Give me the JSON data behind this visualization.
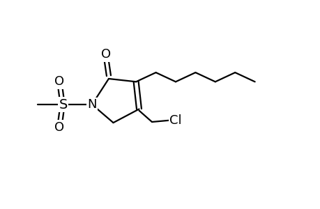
{
  "bg_color": "#ffffff",
  "line_color": "#000000",
  "line_width": 1.6,
  "font_size": 12,
  "xlim": [
    -3.0,
    7.5
  ],
  "ylim": [
    -2.8,
    2.8
  ],
  "figsize": [
    4.6,
    3.0
  ],
  "dpi": 100
}
